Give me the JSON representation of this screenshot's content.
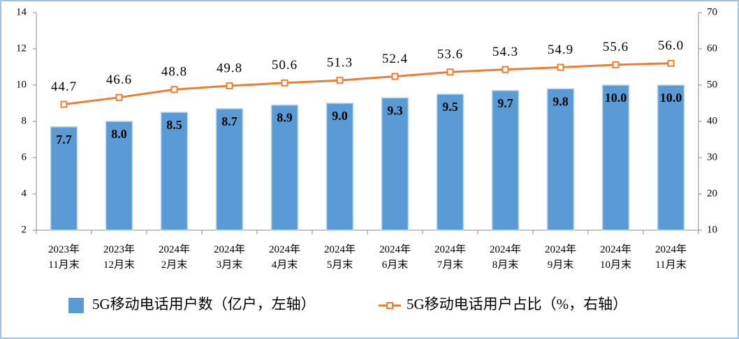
{
  "chart_data": {
    "type": "bar-line",
    "categories": [
      "2023年\n11月末",
      "2023年\n12月末",
      "2024年\n2月末",
      "2024年\n3月末",
      "2024年\n4月末",
      "2024年\n5月末",
      "2024年\n6月末",
      "2024年\n7月末",
      "2024年\n8月末",
      "2024年\n9月末",
      "2024年\n10月末",
      "2024年\n11月末"
    ],
    "series": [
      {
        "name": "5G移动电话用户数（亿户，左轴）",
        "type": "bar",
        "color": "#5b9bd5",
        "values": [
          7.7,
          8.0,
          8.5,
          8.7,
          8.9,
          9.0,
          9.3,
          9.5,
          9.7,
          9.8,
          10.0,
          10.0
        ],
        "value_labels": [
          "7.7",
          "8.0",
          "8.5",
          "8.7",
          "8.9",
          "9.0",
          "9.3",
          "9.5",
          "9.7",
          "9.8",
          "10.0",
          "10.0"
        ]
      },
      {
        "name": "5G移动电话用户占比（%，右轴）",
        "type": "line",
        "axis": "y2",
        "color": "#ed7d31",
        "values": [
          44.7,
          46.6,
          48.8,
          49.8,
          50.6,
          51.3,
          52.4,
          53.6,
          54.3,
          54.9,
          55.6,
          56.0
        ],
        "value_labels": [
          "44.7",
          "46.6",
          "48.8",
          "49.8",
          "50.6",
          "51.3",
          "52.4",
          "53.6",
          "54.3",
          "54.9",
          "55.6",
          "56.0"
        ]
      }
    ],
    "ylim": [
      2,
      14
    ],
    "yticks": [
      2,
      4,
      6,
      8,
      10,
      12,
      14
    ],
    "y2lim": [
      10,
      70
    ],
    "y2ticks": [
      10,
      20,
      30,
      40,
      50,
      60,
      70
    ],
    "grid": false
  }
}
